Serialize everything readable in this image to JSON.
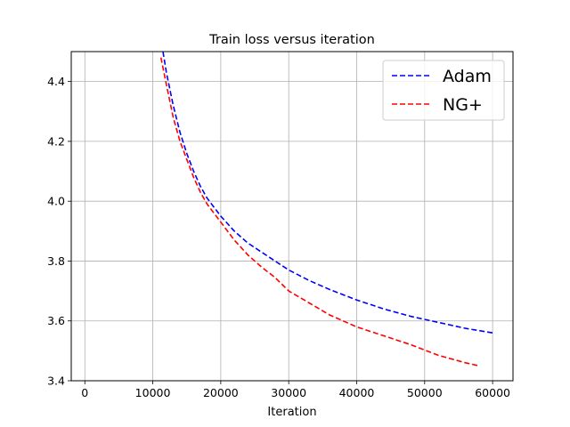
{
  "chart_data": {
    "type": "line",
    "title": "Train loss versus iteration",
    "xlabel": "Iteration",
    "ylabel": "",
    "xlim": [
      -2000,
      63000
    ],
    "ylim": [
      3.4,
      4.5
    ],
    "xticks": [
      0,
      10000,
      20000,
      30000,
      40000,
      50000,
      60000
    ],
    "yticks": [
      3.4,
      3.6,
      3.8,
      4.0,
      4.2,
      4.4
    ],
    "xtick_labels": [
      "0",
      "10000",
      "20000",
      "30000",
      "40000",
      "50000",
      "60000"
    ],
    "ytick_labels": [
      "3.4",
      "3.6",
      "3.8",
      "4.0",
      "4.2",
      "4.4"
    ],
    "grid": true,
    "legend_position": "top-right",
    "series": [
      {
        "name": "Adam",
        "color": "#0000ff",
        "linestyle": "dashed",
        "x": [
          11500,
          12000,
          13000,
          14000,
          15000,
          16000,
          17000,
          18000,
          20000,
          22000,
          24000,
          26000,
          28000,
          30000,
          33000,
          36000,
          40000,
          44000,
          48000,
          52000,
          56000,
          60000
        ],
        "y": [
          4.5,
          4.43,
          4.32,
          4.23,
          4.16,
          4.1,
          4.05,
          4.01,
          3.95,
          3.9,
          3.86,
          3.83,
          3.8,
          3.77,
          3.735,
          3.705,
          3.67,
          3.64,
          3.615,
          3.595,
          3.575,
          3.56
        ]
      },
      {
        "name": "NG+",
        "color": "#ff0000",
        "linestyle": "dashed",
        "x": [
          11200,
          12000,
          13000,
          14000,
          15000,
          16000,
          17000,
          18000,
          20000,
          22000,
          24000,
          26000,
          28000,
          30000,
          33000,
          36000,
          38000,
          40000,
          44000,
          48000,
          52000,
          56000,
          58000
        ],
        "y": [
          4.48,
          4.39,
          4.28,
          4.2,
          4.14,
          4.08,
          4.03,
          3.99,
          3.93,
          3.87,
          3.82,
          3.78,
          3.745,
          3.7,
          3.66,
          3.62,
          3.6,
          3.58,
          3.55,
          3.52,
          3.485,
          3.46,
          3.45
        ]
      }
    ]
  }
}
